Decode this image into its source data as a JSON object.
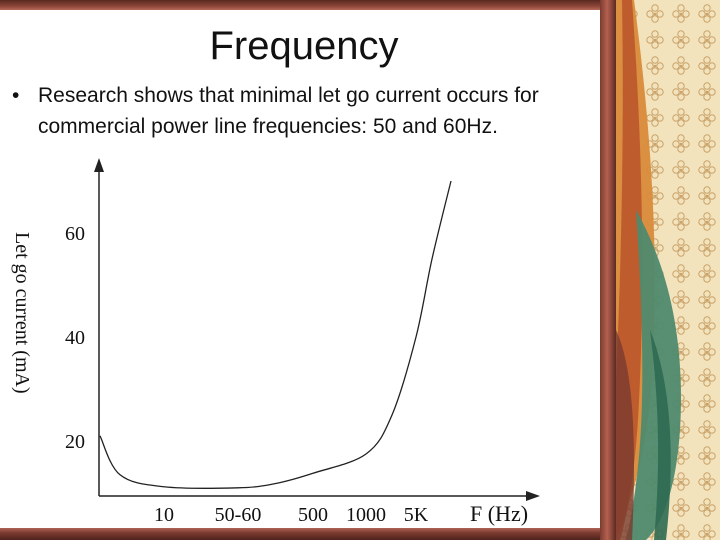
{
  "slide": {
    "title": "Frequency",
    "bullet": "Research shows that minimal let go current occurs for commercial power line frequencies: 50 and 60Hz."
  },
  "chart_data": {
    "type": "line",
    "title": "",
    "xlabel": "F (Hz)",
    "ylabel": "Let go current (mA)",
    "x_ticks": [
      "10",
      "50-60",
      "500",
      "1000",
      "5K"
    ],
    "y_ticks": [
      20,
      40,
      60
    ],
    "ylim": [
      8,
      70
    ],
    "grid": false,
    "series": [
      {
        "name": "",
        "x": [
          "~1",
          "~3",
          "10",
          "50-60",
          "~200",
          "500",
          "1000",
          "~2000",
          "5K",
          "~6000",
          "~8000"
        ],
        "y": [
          21,
          13.5,
          11.2,
          11,
          11.8,
          13.8,
          17.5,
          25,
          40,
          55,
          70
        ]
      }
    ]
  },
  "colors": {
    "frame": "#7a3b30",
    "curve": "#222222",
    "deco_orange": "#d98a3a",
    "deco_teal": "#4f8a6e",
    "deco_cream": "#f1ddb0"
  }
}
